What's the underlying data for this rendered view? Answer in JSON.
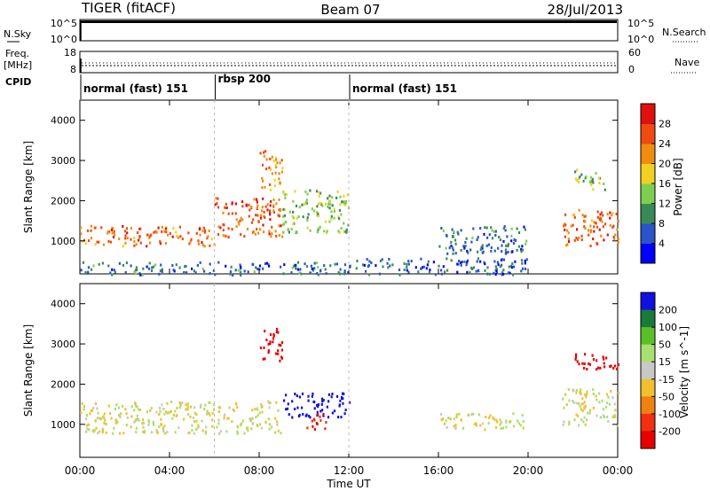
{
  "header": {
    "radar": "TIGER (fitACF)",
    "beam": "Beam 07",
    "date": "28/Jul/2013"
  },
  "status_panels": {
    "nsky_label": "N.Sky",
    "nsky_ticks": [
      "10^5",
      "10^0"
    ],
    "nsearch_label": "N.Search",
    "nsearch_ticks": [
      "10^5",
      "10^0"
    ],
    "freq_label_1": "Freq.",
    "freq_label_2": "[MHz]",
    "freq_ticks": [
      "18",
      "8"
    ],
    "nave_label": "Nave",
    "nave_ticks": [
      "60",
      "0"
    ],
    "cpid_label": "CPID",
    "cpid_segments": [
      {
        "label": "normal (fast) 151",
        "start_hour": 0,
        "end_hour": 6
      },
      {
        "label": "rbsp 200",
        "start_hour": 6,
        "end_hour": 12
      },
      {
        "label": "normal (fast) 151",
        "start_hour": 12,
        "end_hour": 24
      }
    ]
  },
  "chart_data": [
    {
      "type": "heatmap",
      "title": "",
      "parameter": "Power",
      "xlabel": "Time UT",
      "ylabel": "Slant Range [km]",
      "x_ticks": [
        "00:00",
        "04:00",
        "08:00",
        "12:00",
        "16:00",
        "20:00",
        "00:00"
      ],
      "xlim_hours": [
        0,
        24
      ],
      "y_ticks": [
        1000,
        2000,
        3000,
        4000
      ],
      "ylim_km": [
        180,
        4500
      ],
      "colorbar": {
        "label": "Power [dB]",
        "ticks": [
          "4",
          "8",
          "12",
          "16",
          "20",
          "24",
          "28"
        ],
        "range": [
          0,
          32
        ],
        "colors": [
          "#0000ff",
          "#2b55c8",
          "#3a8a58",
          "#7ecf50",
          "#f0d020",
          "#f08c10",
          "#f04a10",
          "#e01010"
        ]
      },
      "scatter_regions": [
        {
          "t": [
            0.0,
            6.0
          ],
          "r": [
            900,
            1400
          ],
          "dB": 24
        },
        {
          "t": [
            6.0,
            9.0
          ],
          "r": [
            1100,
            2100
          ],
          "dB": 26
        },
        {
          "t": [
            8.0,
            9.0
          ],
          "r": [
            2300,
            3300
          ],
          "dB": 22
        },
        {
          "t": [
            9.0,
            12.0
          ],
          "r": [
            1200,
            2300
          ],
          "dB": 14
        },
        {
          "t": [
            0.0,
            12.0
          ],
          "r": [
            180,
            500
          ],
          "dB": 8
        },
        {
          "t": [
            12.0,
            20.0
          ],
          "r": [
            180,
            600
          ],
          "dB": 6
        },
        {
          "t": [
            16.0,
            20.0
          ],
          "r": [
            700,
            1400
          ],
          "dB": 8
        },
        {
          "t": [
            21.5,
            24.0
          ],
          "r": [
            900,
            1800
          ],
          "dB": 24
        },
        {
          "t": [
            22.0,
            23.5
          ],
          "r": [
            2300,
            2800
          ],
          "dB": 14
        }
      ]
    },
    {
      "type": "heatmap",
      "title": "",
      "parameter": "Velocity",
      "xlabel": "Time UT",
      "ylabel": "Slant Range [km]",
      "x_ticks": [
        "00:00",
        "04:00",
        "08:00",
        "12:00",
        "16:00",
        "20:00",
        "00:00"
      ],
      "xlim_hours": [
        0,
        24
      ],
      "y_ticks": [
        1000,
        2000,
        3000,
        4000
      ],
      "ylim_km": [
        180,
        4500
      ],
      "colorbar": {
        "label": "Velocity [m s^-1]",
        "ticks": [
          "200",
          "100",
          "50",
          "15",
          "-15",
          "-50",
          "-100",
          "-200"
        ],
        "colors": [
          "#1010e0",
          "#1a7a3a",
          "#5ac02a",
          "#a8e070",
          "#c8c8c8",
          "#f0c030",
          "#f08010",
          "#f03010",
          "#e80000"
        ]
      },
      "scatter_regions": [
        {
          "t": [
            0.0,
            9.0
          ],
          "r": [
            800,
            1600
          ],
          "ms": 0
        },
        {
          "t": [
            8.0,
            9.0
          ],
          "r": [
            2600,
            3400
          ],
          "ms": -200
        },
        {
          "t": [
            9.0,
            12.0
          ],
          "r": [
            1200,
            1800
          ],
          "ms": 200
        },
        {
          "t": [
            10.0,
            11.0
          ],
          "r": [
            900,
            1300
          ],
          "ms": -150
        },
        {
          "t": [
            16.0,
            20.0
          ],
          "r": [
            900,
            1300
          ],
          "ms": 0
        },
        {
          "t": [
            21.5,
            24.0
          ],
          "r": [
            1000,
            1900
          ],
          "ms": 0
        },
        {
          "t": [
            22.0,
            24.0
          ],
          "r": [
            2400,
            2800
          ],
          "ms": -200
        }
      ]
    }
  ]
}
